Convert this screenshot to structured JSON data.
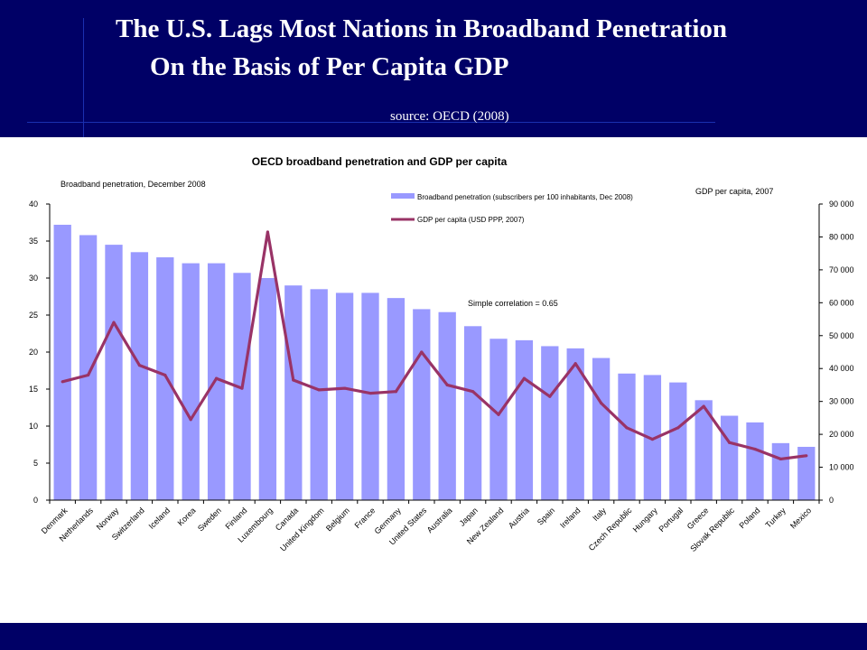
{
  "slide": {
    "title_line1": "The U.S. Lags Most Nations in Broadband Penetration",
    "title_line2": "On the Basis of  Per Capita GDP",
    "source": "source: OECD (2008)",
    "colors": {
      "header_bg": "#000066",
      "bar": "#9999ff",
      "line": "#993366"
    }
  },
  "chart_data": {
    "type": "bar",
    "title": "OECD broadband penetration and GDP per capita",
    "left_axis_label": "Broadband penetration, December 2008",
    "right_axis_label": "GDP per capita, 2007",
    "annotation": "Simple correlation = 0.65",
    "legend_position": "top-center",
    "grid": false,
    "categories": [
      "Denmark",
      "Netherlands",
      "Norway",
      "Switzerland",
      "Iceland",
      "Korea",
      "Sweden",
      "Finland",
      "Luxembourg",
      "Canada",
      "United Kingdom",
      "Belgium",
      "France",
      "Germany",
      "United States",
      "Australia",
      "Japan",
      "New Zealand",
      "Austria",
      "Spain",
      "Ireland",
      "Italy",
      "Czech Republic",
      "Hungary",
      "Portugal",
      "Greece",
      "Slovak Republic",
      "Poland",
      "Turkey",
      "Mexico"
    ],
    "ylim_left": [
      0,
      40
    ],
    "yticks_left": [
      "0",
      "5",
      "10",
      "15",
      "20",
      "25",
      "30",
      "35",
      "40"
    ],
    "ylim_right": [
      0,
      90000
    ],
    "yticks_right": [
      "0",
      "10 000",
      "20 000",
      "30 000",
      "40 000",
      "50 000",
      "60 000",
      "70 000",
      "80 000",
      "90 000"
    ],
    "series": [
      {
        "name": "Broadband penetration (subscribers per 100 inhabitants, Dec 2008)",
        "kind": "bar",
        "axis": "left",
        "values": [
          37.2,
          35.8,
          34.5,
          33.5,
          32.8,
          32.0,
          32.0,
          30.7,
          30.0,
          29.0,
          28.5,
          28.0,
          28.0,
          27.3,
          25.8,
          25.4,
          23.5,
          21.8,
          21.6,
          20.8,
          20.5,
          19.2,
          17.1,
          16.9,
          15.9,
          13.5,
          11.4,
          10.5,
          7.7,
          7.2
        ]
      },
      {
        "name": "GDP per capita (USD PPP, 2007)",
        "kind": "line",
        "axis": "right",
        "values": [
          36000,
          38000,
          54000,
          41000,
          38000,
          24500,
          37000,
          34000,
          81500,
          36500,
          33500,
          34000,
          32500,
          33000,
          45000,
          35000,
          33000,
          26000,
          37000,
          31500,
          41500,
          29500,
          22000,
          18500,
          22000,
          28500,
          17500,
          15500,
          12500,
          13500
        ]
      }
    ]
  }
}
